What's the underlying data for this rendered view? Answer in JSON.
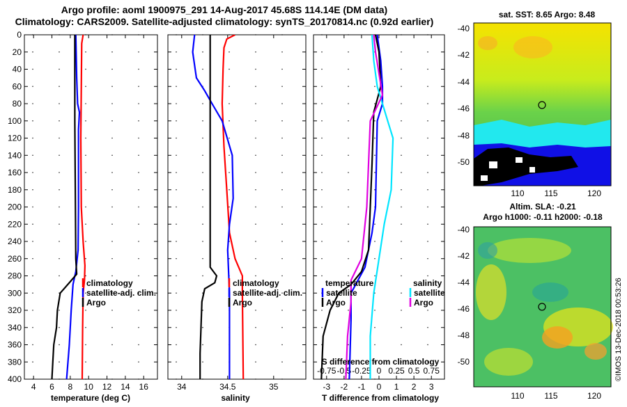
{
  "header": {
    "line1": "Argo profile: aoml 1900975_291 14-Aug-2017 45.68S 114.14E (DM data)",
    "line2": "Climatology: CARS2009. Satellite-adjusted climatology: synTS_20170814.nc (0.92d earlier)"
  },
  "colors": {
    "climatology": "#ff0000",
    "satellite": "#0000ff",
    "argo": "#000000",
    "sat_salinity": "#00e5ff",
    "argo_salinity": "#e000e0"
  },
  "chart_data": [
    {
      "type": "line",
      "id": "temperature",
      "xlabel": "temperature (deg C)",
      "xlim": [
        3,
        17.5
      ],
      "xticks": [
        4,
        6,
        8,
        10,
        12,
        14,
        16
      ],
      "ylim": [
        0,
        400
      ],
      "yticks": [
        0,
        20,
        40,
        60,
        80,
        100,
        120,
        140,
        160,
        180,
        200,
        220,
        240,
        260,
        280,
        300,
        320,
        340,
        360,
        380,
        400
      ],
      "legend": [
        "climatology",
        "satellite-adj. clim.",
        "Argo"
      ],
      "series": [
        {
          "name": "climatology",
          "color": "#ff0000",
          "points": [
            [
              9.4,
              0
            ],
            [
              9.25,
              10
            ],
            [
              9.2,
              60
            ],
            [
              9.15,
              120
            ],
            [
              9.2,
              200
            ],
            [
              9.4,
              240
            ],
            [
              9.6,
              268
            ],
            [
              9.55,
              285
            ],
            [
              9.4,
              300
            ],
            [
              9.35,
              340
            ],
            [
              9.3,
              400
            ]
          ]
        },
        {
          "name": "satellite-adj. clim.",
          "color": "#0000ff",
          "points": [
            [
              8.6,
              0
            ],
            [
              8.7,
              50
            ],
            [
              8.8,
              80
            ],
            [
              9.0,
              90
            ],
            [
              8.9,
              110
            ],
            [
              8.9,
              200
            ],
            [
              8.85,
              250
            ],
            [
              8.6,
              275
            ],
            [
              8.3,
              290
            ],
            [
              8.1,
              320
            ],
            [
              7.9,
              360
            ],
            [
              7.6,
              400
            ]
          ]
        },
        {
          "name": "Argo",
          "color": "#000000",
          "points": [
            [
              8.5,
              0
            ],
            [
              8.5,
              100
            ],
            [
              8.55,
              180
            ],
            [
              8.6,
              260
            ],
            [
              8.7,
              278
            ],
            [
              7.9,
              288
            ],
            [
              6.9,
              300
            ],
            [
              6.6,
              320
            ],
            [
              6.5,
              340
            ],
            [
              6.2,
              360
            ],
            [
              6.1,
              380
            ],
            [
              6.0,
              400
            ]
          ]
        }
      ]
    },
    {
      "type": "line",
      "id": "salinity",
      "xlabel": "salinity",
      "xlim": [
        33.85,
        35.35
      ],
      "xticks": [
        34,
        34.5,
        35
      ],
      "xticklabels": [
        "34",
        "34.5",
        "35"
      ],
      "ylim": [
        0,
        400
      ],
      "yticks": [
        0,
        20,
        40,
        60,
        80,
        100,
        120,
        140,
        160,
        180,
        200,
        220,
        240,
        260,
        280,
        300,
        320,
        340,
        360,
        380,
        400
      ],
      "legend": [
        "climatology",
        "satellite-adj. clim.",
        "Argo"
      ],
      "series": [
        {
          "name": "climatology",
          "color": "#ff0000",
          "points": [
            [
              34.58,
              0
            ],
            [
              34.49,
              5
            ],
            [
              34.46,
              15
            ],
            [
              34.45,
              40
            ],
            [
              34.44,
              80
            ],
            [
              34.46,
              130
            ],
            [
              34.49,
              180
            ],
            [
              34.52,
              230
            ],
            [
              34.58,
              260
            ],
            [
              34.66,
              280
            ],
            [
              34.66,
              300
            ],
            [
              34.67,
              400
            ]
          ]
        },
        {
          "name": "satellite-adj. clim.",
          "color": "#0000ff",
          "points": [
            [
              34.14,
              0
            ],
            [
              34.12,
              20
            ],
            [
              34.16,
              50
            ],
            [
              34.25,
              65
            ],
            [
              34.33,
              80
            ],
            [
              34.44,
              100
            ],
            [
              34.55,
              140
            ],
            [
              34.56,
              190
            ],
            [
              34.52,
              220
            ],
            [
              34.5,
              250
            ],
            [
              34.52,
              300
            ],
            [
              34.52,
              400
            ]
          ]
        },
        {
          "name": "Argo",
          "color": "#000000",
          "points": [
            [
              34.31,
              0
            ],
            [
              34.31,
              270
            ],
            [
              34.38,
              280
            ],
            [
              34.36,
              288
            ],
            [
              34.25,
              295
            ],
            [
              34.22,
              310
            ],
            [
              34.21,
              340
            ],
            [
              34.2,
              370
            ],
            [
              34.2,
              400
            ]
          ]
        }
      ]
    },
    {
      "type": "line",
      "id": "difference",
      "xlabel": "T difference from climatology",
      "toplabel": "S difference from climatology",
      "xlim": [
        -3.75,
        3.75
      ],
      "xticks": [
        -3,
        -2,
        -1,
        0,
        1,
        2,
        3
      ],
      "topticks": [
        "-0.75",
        "-0.5",
        "-0.25",
        "0",
        "0.25",
        "0.5",
        "0.75"
      ],
      "ylim": [
        0,
        400
      ],
      "legend_temperature": [
        "temperature",
        "satellite",
        "Argo"
      ],
      "legend_salinity": [
        "salinity",
        "satellite",
        "Argo"
      ],
      "series": [
        {
          "name": "T satellite",
          "color": "#0000ff",
          "points": [
            [
              -0.1,
              0
            ],
            [
              0.1,
              30
            ],
            [
              0.2,
              60
            ],
            [
              0.2,
              80
            ],
            [
              -0.1,
              100
            ],
            [
              -0.2,
              200
            ],
            [
              -0.4,
              230
            ],
            [
              -0.8,
              270
            ],
            [
              -1.2,
              285
            ],
            [
              -1.6,
              300
            ],
            [
              -1.6,
              330
            ],
            [
              -1.7,
              400
            ]
          ]
        },
        {
          "name": "T Argo",
          "color": "#000000",
          "points": [
            [
              -0.2,
              0
            ],
            [
              0,
              20
            ],
            [
              0.1,
              60
            ],
            [
              -0.3,
              90
            ],
            [
              -0.4,
              150
            ],
            [
              -0.6,
              250
            ],
            [
              -1.0,
              275
            ],
            [
              -1.6,
              290
            ],
            [
              -2.3,
              300
            ],
            [
              -2.8,
              320
            ],
            [
              -3.2,
              350
            ],
            [
              -3.3,
              400
            ]
          ]
        },
        {
          "name": "S satellite",
          "color": "#00e5ff",
          "points": [
            [
              -0.4,
              0
            ],
            [
              -0.3,
              30
            ],
            [
              -0.1,
              60
            ],
            [
              0.5,
              100
            ],
            [
              0.8,
              120
            ],
            [
              0.7,
              180
            ],
            [
              0.3,
              220
            ],
            [
              0,
              260
            ],
            [
              -0.3,
              300
            ],
            [
              -0.5,
              350
            ],
            [
              -0.5,
              400
            ]
          ]
        },
        {
          "name": "S Argo",
          "color": "#e000e0",
          "points": [
            [
              -0.3,
              0
            ],
            [
              -0.2,
              20
            ],
            [
              0.2,
              70
            ],
            [
              -0.5,
              100
            ],
            [
              -0.7,
              200
            ],
            [
              -1.0,
              260
            ],
            [
              -1.6,
              285
            ],
            [
              -1.6,
              310
            ],
            [
              -1.8,
              350
            ],
            [
              -1.9,
              400
            ]
          ]
        }
      ]
    }
  ],
  "maps": {
    "sst": {
      "title": "sat. SST: 8.65 Argo: 8.48",
      "yticks": [
        "-40",
        "-42",
        "-44",
        "-46",
        "-48",
        "-50"
      ],
      "xticks": [
        "110",
        "115",
        "120"
      ]
    },
    "sla": {
      "title1": "Altim. SLA: -0.21",
      "title2": "Argo h1000: -0.11 h2000: -0.18",
      "yticks": [
        "-40",
        "-42",
        "-44",
        "-46",
        "-48",
        "-50"
      ],
      "xticks": [
        "110",
        "115",
        "120"
      ]
    },
    "watermark": "©IMOS 13-Dec-2018 00:53:26"
  }
}
